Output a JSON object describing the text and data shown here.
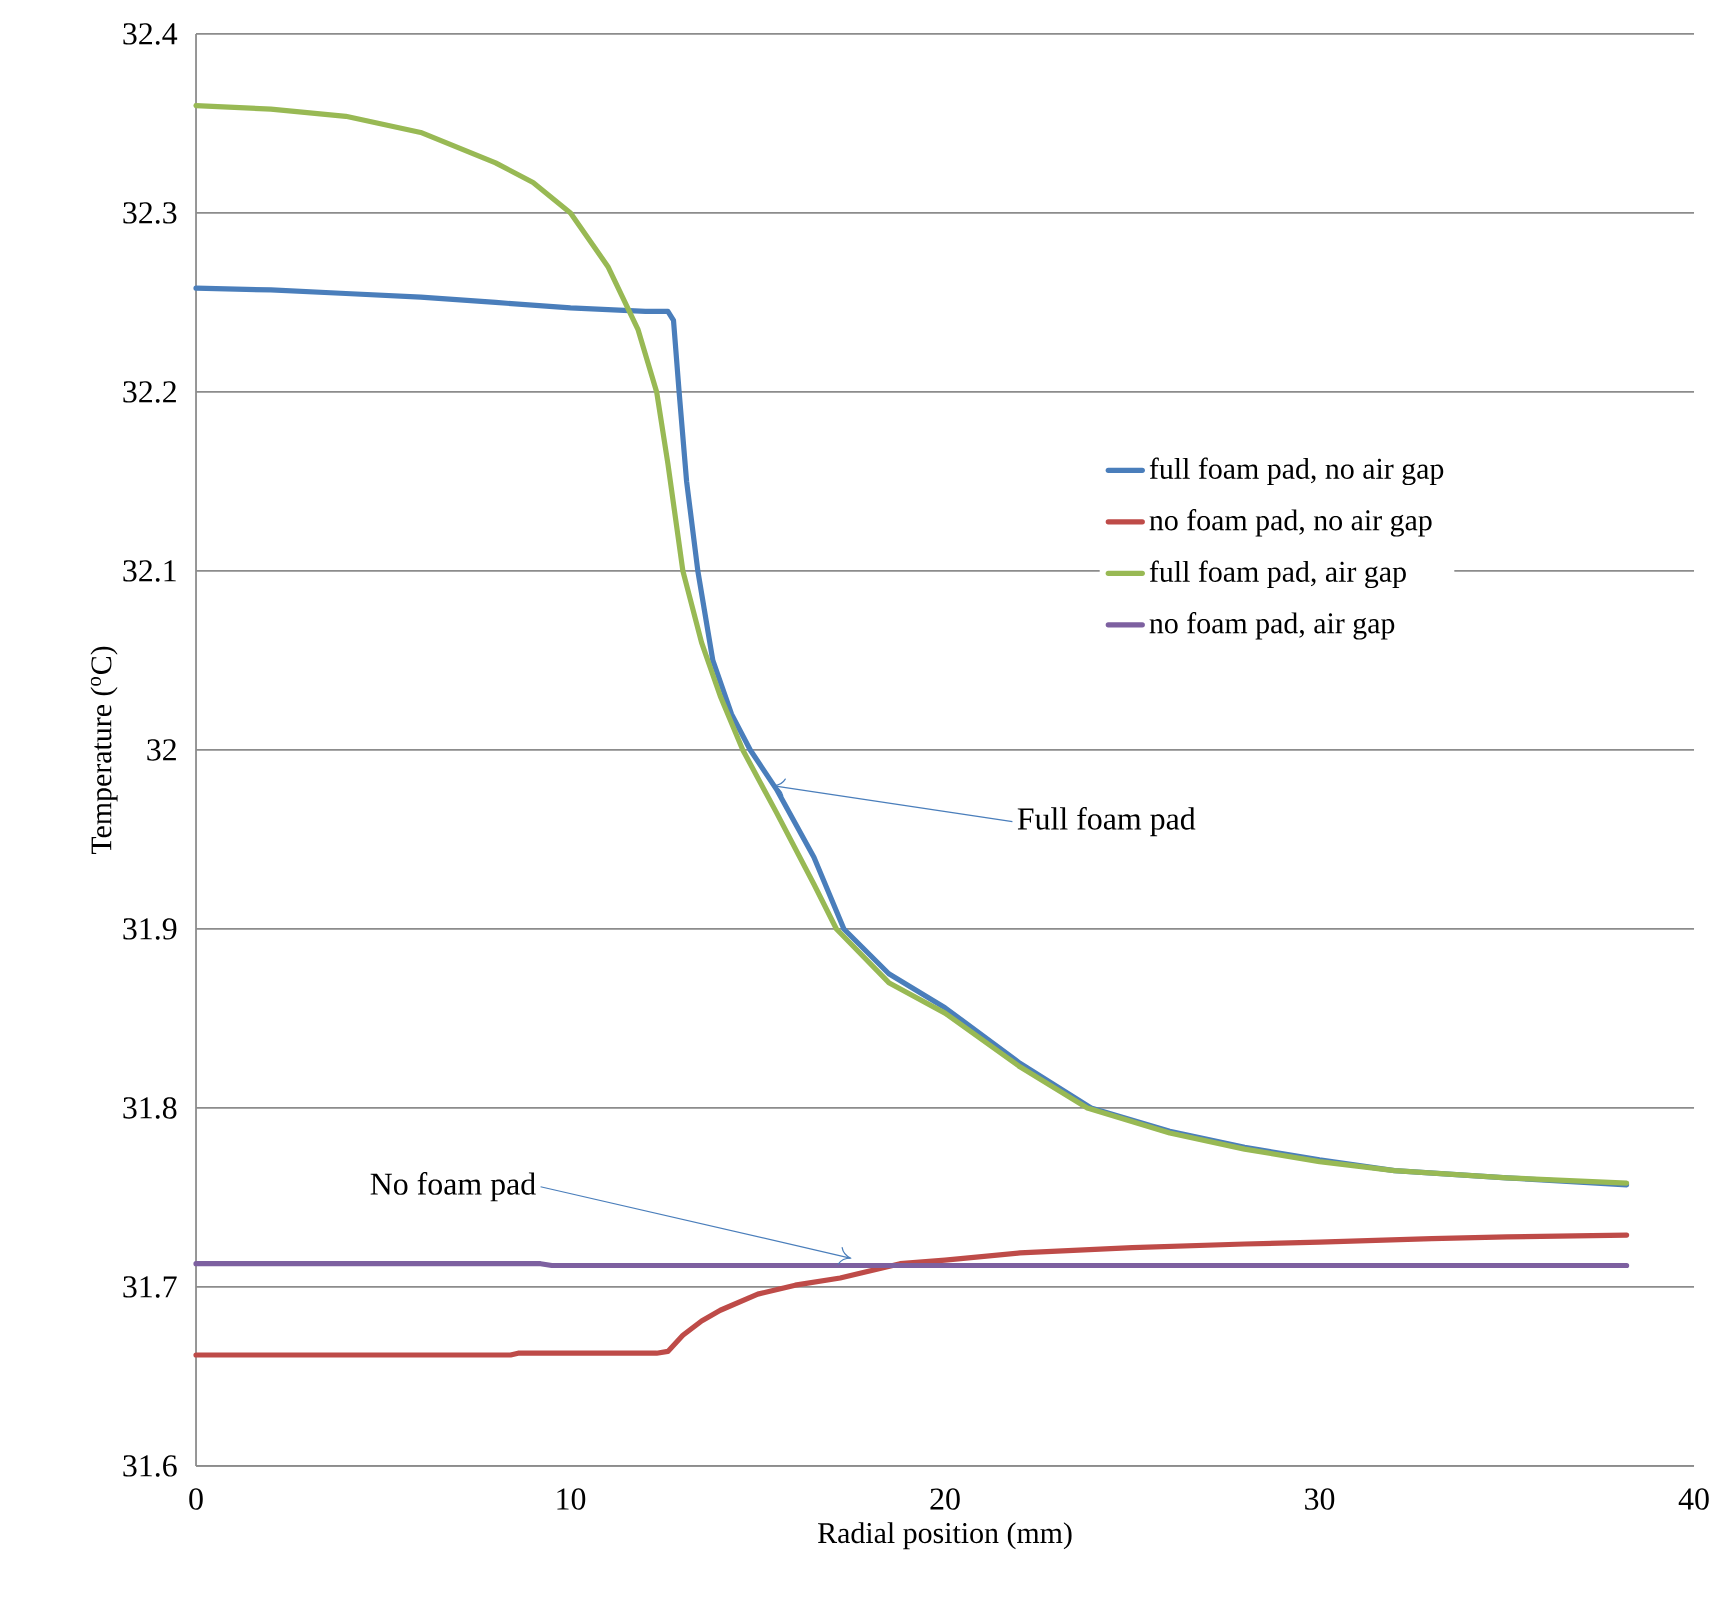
{
  "chart_data": {
    "type": "line",
    "xlabel": "Radial position (mm)",
    "ylabel": "Temperature ($^{o}$C)",
    "xlim": [
      0,
      40
    ],
    "ylim": [
      31.6,
      32.4
    ],
    "xticks": [
      0,
      10,
      20,
      30,
      40
    ],
    "yticks": [
      31.6,
      31.7,
      31.8,
      31.9,
      32,
      32.1,
      32.2,
      32.3,
      32.4
    ],
    "grid": "y",
    "legend": "right",
    "line_style": "solid",
    "marker": "none",
    "series": [
      {
        "name": "full foam pad, no air gap",
        "color": "#4a7ebb",
        "x": [
          0,
          2,
          4,
          6,
          8,
          10,
          12,
          12.6,
          12.75,
          12.9,
          13.1,
          13.4,
          13.8,
          14.3,
          14.8,
          15.5,
          16.5,
          17.3,
          18.5,
          20,
          22,
          23.9,
          26,
          28,
          30,
          32,
          35,
          38.2
        ],
        "values": [
          32.258,
          32.257,
          32.255,
          32.253,
          32.25,
          32.247,
          32.245,
          32.245,
          32.24,
          32.2,
          32.15,
          32.1,
          32.05,
          32.02,
          32.0,
          31.978,
          31.94,
          31.9,
          31.875,
          31.856,
          31.825,
          31.8,
          31.787,
          31.778,
          31.771,
          31.765,
          31.761,
          31.757
        ]
      },
      {
        "name": "no foam pad, no air gap",
        "color": "#be4b48",
        "x": [
          0,
          8.4,
          8.6,
          12.3,
          12.6,
          13,
          13.5,
          14,
          15,
          16,
          17.2,
          18.8,
          20,
          22,
          25,
          28,
          30,
          33,
          35,
          38.2
        ],
        "values": [
          31.662,
          31.662,
          31.663,
          31.663,
          31.664,
          31.673,
          31.681,
          31.687,
          31.696,
          31.701,
          31.705,
          31.713,
          31.715,
          31.719,
          31.722,
          31.724,
          31.725,
          31.727,
          31.728,
          31.729
        ]
      },
      {
        "name": "full foam pad, air gap",
        "color": "#98b954",
        "x": [
          0,
          2,
          4,
          6,
          8,
          9,
          10,
          11,
          11.8,
          12.3,
          12.6,
          13.0,
          13.5,
          14,
          14.6,
          15.5,
          16.5,
          17.1,
          18.5,
          20,
          22,
          23.8,
          26,
          28,
          30,
          32,
          35,
          38.2
        ],
        "values": [
          32.36,
          32.358,
          32.354,
          32.345,
          32.328,
          32.317,
          32.3,
          32.27,
          32.235,
          32.2,
          32.16,
          32.1,
          32.06,
          32.03,
          32.0,
          31.965,
          31.925,
          31.9,
          31.87,
          31.853,
          31.823,
          31.8,
          31.786,
          31.777,
          31.77,
          31.765,
          31.761,
          31.758
        ]
      },
      {
        "name": "no foam pad, air gap",
        "color": "#7d60a0",
        "x": [
          0,
          9.2,
          9.5,
          38.2
        ],
        "values": [
          31.713,
          31.713,
          31.712,
          31.712
        ]
      }
    ],
    "annotations": [
      {
        "text": "Full foam pad",
        "x": 15.2,
        "y": 31.98
      },
      {
        "text": "No foam pad",
        "x": 17.7,
        "y": 31.716
      }
    ]
  }
}
